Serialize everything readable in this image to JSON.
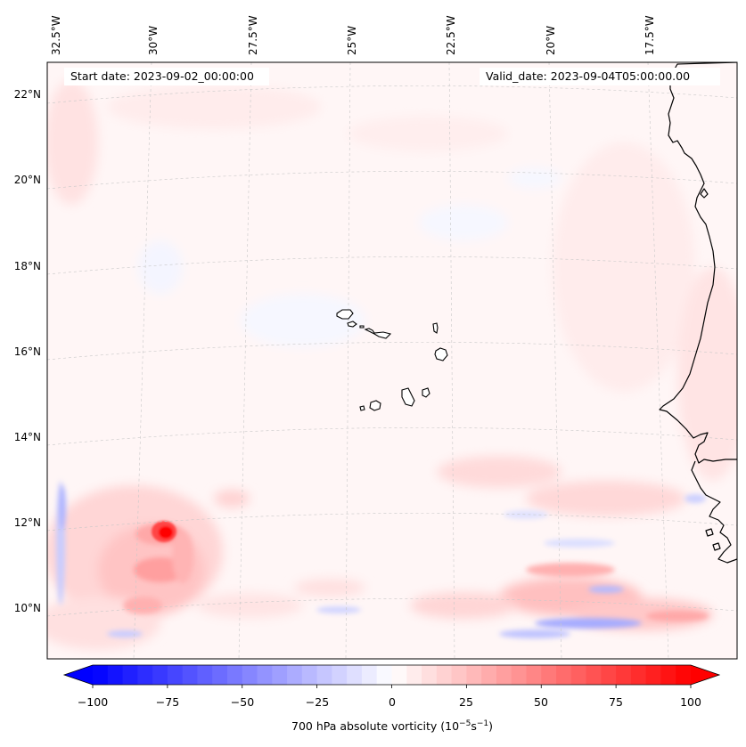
{
  "map": {
    "start_date": "Start date: 2023-09-02_00:00:00",
    "valid_date": "Valid_date: 2023-09-04T05:00:00.00",
    "lon_labels": [
      "32.5°W",
      "30°W",
      "27.5°W",
      "25°W",
      "22.5°W",
      "20°W",
      "17.5°W"
    ],
    "lat_labels": [
      "22°N",
      "20°N",
      "18°N",
      "16°N",
      "14°N",
      "12°N",
      "10°N"
    ],
    "gridlines": true,
    "projection": "Lambert conformal (curved parallels)",
    "features": [
      "Cape Verde islands",
      "West African coastline"
    ]
  },
  "colorbar": {
    "label_prefix": "700 hPa absolute vorticity (10",
    "label_exp1": "−5",
    "label_mid": "s",
    "label_exp2": "−1",
    "label_suffix": ")",
    "ticks": [
      "−100",
      "−75",
      "−50",
      "−25",
      "0",
      "25",
      "50",
      "75",
      "100"
    ],
    "min_color": "#0000ff",
    "mid_color": "#ffffff",
    "max_color": "#ff0000",
    "extend": "both"
  }
}
